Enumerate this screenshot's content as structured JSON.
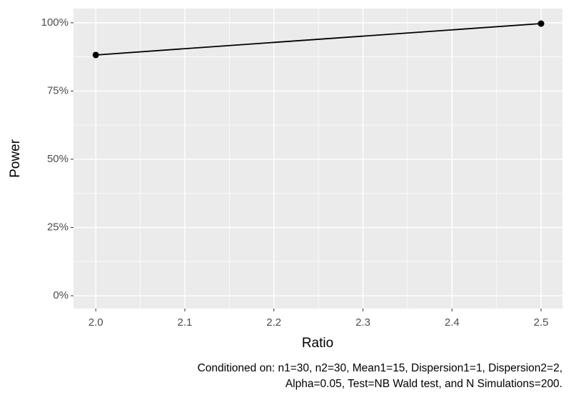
{
  "chart_data": {
    "type": "line",
    "x": [
      2.0,
      2.5
    ],
    "series": [
      {
        "name": "Power",
        "color": "#000000",
        "values": [
          88.2,
          99.7
        ]
      }
    ],
    "xlabel": "Ratio",
    "ylabel": "Power",
    "xlim": [
      1.975,
      2.524
    ],
    "xticks": [
      {
        "value": 2.0,
        "label": "2.0"
      },
      2.1,
      2.2,
      2.3,
      2.4,
      2.5
    ],
    "ylim": [
      -4.7,
      105.2
    ],
    "yticks": [
      {
        "value": 0,
        "label": "0%"
      },
      {
        "value": 25,
        "label": "25%"
      },
      {
        "value": 50,
        "label": "50%"
      },
      {
        "value": 75,
        "label": "75%"
      },
      {
        "value": 100,
        "label": "100%"
      }
    ],
    "grid": true,
    "minor_grid": true,
    "caption": [
      "Conditioned on: n1=30, n2=30, Mean1=15, Dispersion1=1, Dispersion2=2,",
      "Alpha=0.05, Test=NB Wald test, and N Simulations=200."
    ]
  }
}
